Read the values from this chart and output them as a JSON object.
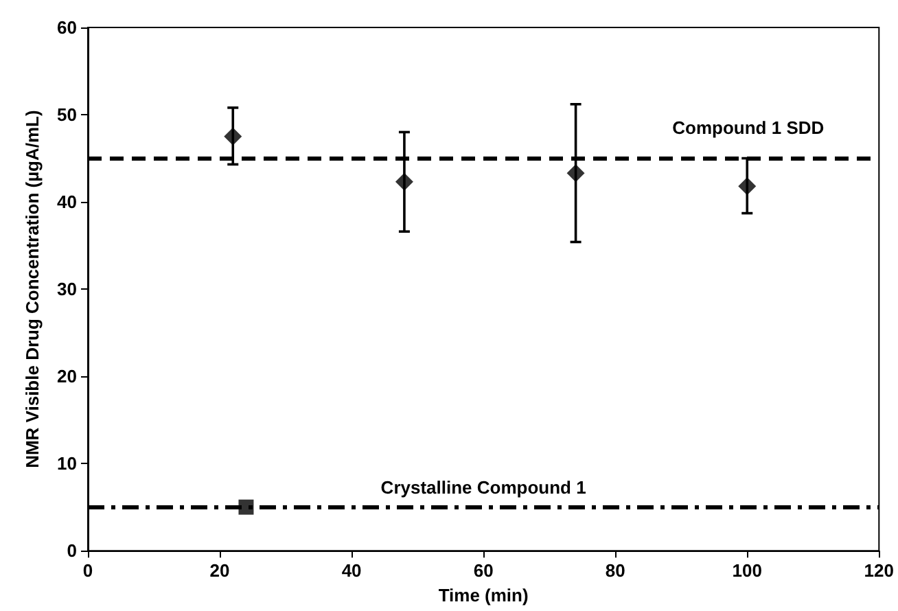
{
  "chart_data": {
    "type": "scatter",
    "xlabel": "Time (min)",
    "ylabel": "NMR Visible Drug Concentration (µgA/mL)",
    "series": [
      {
        "color": "#000000",
        "marker": "diamond",
        "x": [
          22,
          48,
          74,
          100
        ],
        "values": [
          47.5,
          42.3,
          43.3,
          41.8
        ],
        "errors": [
          [
            44.3,
            50.8
          ],
          [
            36.6,
            48.0
          ],
          [
            35.4,
            51.2
          ],
          [
            38.7,
            45.0
          ]
        ]
      },
      {
        "color": "#000000",
        "marker": "square",
        "x": [
          24
        ],
        "values": [
          5
        ]
      }
    ],
    "xlim": [
      0,
      120
    ],
    "xticks": [
      0,
      20,
      40,
      60,
      80,
      100,
      120
    ],
    "ylim": [
      0,
      60
    ],
    "yticks": [
      0,
      10,
      20,
      30,
      40,
      50,
      60
    ],
    "ref_lines": [
      {
        "axis": "y",
        "value": 45,
        "label": "Compound 1 SDD",
        "color": "#000000",
        "line_style": "dashed"
      },
      {
        "axis": "y",
        "value": 5,
        "label": "Crystalline Compound 1",
        "color": "#000000",
        "line_style": "dashdot"
      }
    ],
    "grid": false
  }
}
